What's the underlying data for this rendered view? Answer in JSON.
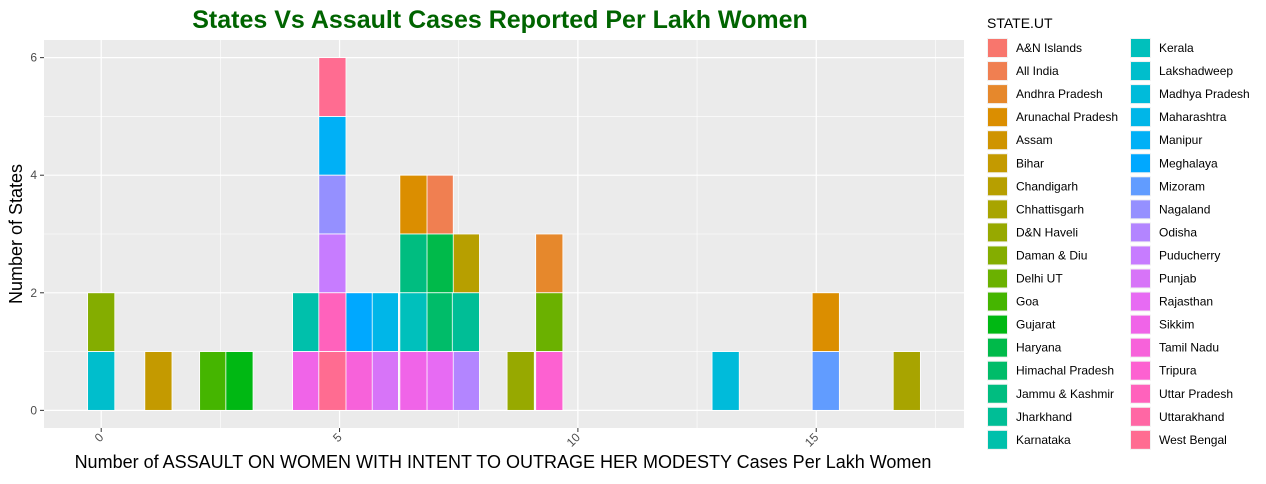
{
  "chart_data": {
    "type": "bar",
    "title": "States Vs Assault Cases Reported Per Lakh Women",
    "xlabel": "Number of ASSAULT ON WOMEN WITH INTENT TO OUTRAGE HER MODESTY Cases Per Lakh Women",
    "ylabel": "Number of States",
    "xlim": [
      -1.2,
      18.1
    ],
    "ylim": [
      -0.3,
      6.3
    ],
    "x_ticks": [
      0,
      5,
      10,
      15
    ],
    "y_ticks": [
      0,
      2,
      4,
      6
    ],
    "bin_width": 0.57,
    "grid": true,
    "legend": {
      "title": "STATE.UT",
      "position": "right"
    },
    "series": [
      {
        "name": "A&N Islands",
        "color": "#F8766D",
        "bars": []
      },
      {
        "name": "All India",
        "color": "#F07F51",
        "bars": [
          {
            "x": 7.1,
            "y0": 3,
            "y1": 4
          }
        ]
      },
      {
        "name": "Andhra Pradesh",
        "color": "#E6882C",
        "bars": [
          {
            "x": 9.4,
            "y0": 2,
            "y1": 3
          }
        ]
      },
      {
        "name": "Arunachal Pradesh",
        "color": "#DB8E00",
        "bars": [
          {
            "x": 6.55,
            "y0": 3,
            "y1": 4
          },
          {
            "x": 15.2,
            "y0": 1,
            "y1": 2
          }
        ]
      },
      {
        "name": "Assam",
        "color": "#CF9400",
        "bars": []
      },
      {
        "name": "Bihar",
        "color": "#C49A00",
        "bars": [
          {
            "x": 1.2,
            "y0": 0,
            "y1": 1
          }
        ]
      },
      {
        "name": "Chandigarh",
        "color": "#B79F00",
        "bars": [
          {
            "x": 7.65,
            "y0": 2,
            "y1": 3
          }
        ]
      },
      {
        "name": "Chhattisgarh",
        "color": "#A8A400",
        "bars": [
          {
            "x": 16.9,
            "y0": 0,
            "y1": 1
          }
        ]
      },
      {
        "name": "D&N Haveli",
        "color": "#97A900",
        "bars": [
          {
            "x": 8.8,
            "y0": 0,
            "y1": 1
          }
        ]
      },
      {
        "name": "Daman & Diu",
        "color": "#84AD00",
        "bars": [
          {
            "x": 0.0,
            "y0": 1,
            "y1": 2
          }
        ]
      },
      {
        "name": "Delhi UT",
        "color": "#6BB100",
        "bars": [
          {
            "x": 9.4,
            "y0": 1,
            "y1": 2
          }
        ]
      },
      {
        "name": "Goa",
        "color": "#45B500",
        "bars": [
          {
            "x": 2.35,
            "y0": 0,
            "y1": 1
          }
        ]
      },
      {
        "name": "Gujarat",
        "color": "#00B813",
        "bars": [
          {
            "x": 2.9,
            "y0": 0,
            "y1": 1
          }
        ]
      },
      {
        "name": "Haryana",
        "color": "#00BA4A",
        "bars": [
          {
            "x": 7.1,
            "y0": 2,
            "y1": 3
          }
        ]
      },
      {
        "name": "Himachal Pradesh",
        "color": "#00BC69",
        "bars": [
          {
            "x": 7.1,
            "y0": 1,
            "y1": 2
          }
        ]
      },
      {
        "name": "Jammu & Kashmir",
        "color": "#00BD80",
        "bars": [
          {
            "x": 6.55,
            "y0": 2,
            "y1": 3
          }
        ]
      },
      {
        "name": "Jharkhand",
        "color": "#00BE96",
        "bars": [
          {
            "x": 7.65,
            "y0": 1,
            "y1": 2
          }
        ]
      },
      {
        "name": "Karnataka",
        "color": "#00C0AB",
        "bars": [
          {
            "x": 4.3,
            "y0": 1,
            "y1": 2
          }
        ]
      },
      {
        "name": "Kerala",
        "color": "#00C0BC",
        "bars": [
          {
            "x": 6.55,
            "y0": 1,
            "y1": 2
          }
        ]
      },
      {
        "name": "Lakshadweep",
        "color": "#00BECC",
        "bars": [
          {
            "x": 0.0,
            "y0": 0,
            "y1": 1
          }
        ]
      },
      {
        "name": "Madhya Pradesh",
        "color": "#00BBDA",
        "bars": [
          {
            "x": 13.1,
            "y0": 0,
            "y1": 1
          }
        ]
      },
      {
        "name": "Maharashtra",
        "color": "#00B6E8",
        "bars": [
          {
            "x": 5.95,
            "y0": 1,
            "y1": 2
          }
        ]
      },
      {
        "name": "Manipur",
        "color": "#00B0F6",
        "bars": [
          {
            "x": 4.85,
            "y0": 4,
            "y1": 5
          }
        ]
      },
      {
        "name": "Meghalaya",
        "color": "#00A8FF",
        "bars": [
          {
            "x": 5.4,
            "y0": 1,
            "y1": 2
          }
        ]
      },
      {
        "name": "Mizoram",
        "color": "#619CFF",
        "bars": [
          {
            "x": 15.2,
            "y0": 0,
            "y1": 1
          }
        ]
      },
      {
        "name": "Nagaland",
        "color": "#9590FF",
        "bars": [
          {
            "x": 4.85,
            "y0": 3,
            "y1": 4
          }
        ]
      },
      {
        "name": "Odisha",
        "color": "#B385FF",
        "bars": [
          {
            "x": 7.65,
            "y0": 0,
            "y1": 1
          }
        ]
      },
      {
        "name": "Puducherry",
        "color": "#C77CFF",
        "bars": [
          {
            "x": 4.85,
            "y0": 2,
            "y1": 3
          }
        ]
      },
      {
        "name": "Punjab",
        "color": "#D774F8",
        "bars": [
          {
            "x": 5.95,
            "y0": 0,
            "y1": 1
          }
        ]
      },
      {
        "name": "Rajasthan",
        "color": "#E76BF3",
        "bars": [
          {
            "x": 7.1,
            "y0": 0,
            "y1": 1
          }
        ]
      },
      {
        "name": "Sikkim",
        "color": "#F064E8",
        "bars": [
          {
            "x": 4.3,
            "y0": 0,
            "y1": 1
          },
          {
            "x": 6.55,
            "y0": 0,
            "y1": 1
          }
        ]
      },
      {
        "name": "Tamil Nadu",
        "color": "#F762DA",
        "bars": [
          {
            "x": 5.4,
            "y0": 0,
            "y1": 1
          }
        ]
      },
      {
        "name": "Tripura",
        "color": "#FD61D1",
        "bars": [
          {
            "x": 9.4,
            "y0": 0,
            "y1": 1
          }
        ]
      },
      {
        "name": "Uttar Pradesh",
        "color": "#FF62BC",
        "bars": [
          {
            "x": 4.85,
            "y0": 1,
            "y1": 2
          }
        ]
      },
      {
        "name": "Uttarakhand",
        "color": "#FF67A4",
        "bars": []
      },
      {
        "name": "West Bengal",
        "color": "#FF6C91",
        "bars": [
          {
            "x": 4.85,
            "y0": 0,
            "y1": 1
          },
          {
            "x": 4.85,
            "y0": 5,
            "y1": 6
          }
        ]
      }
    ]
  }
}
